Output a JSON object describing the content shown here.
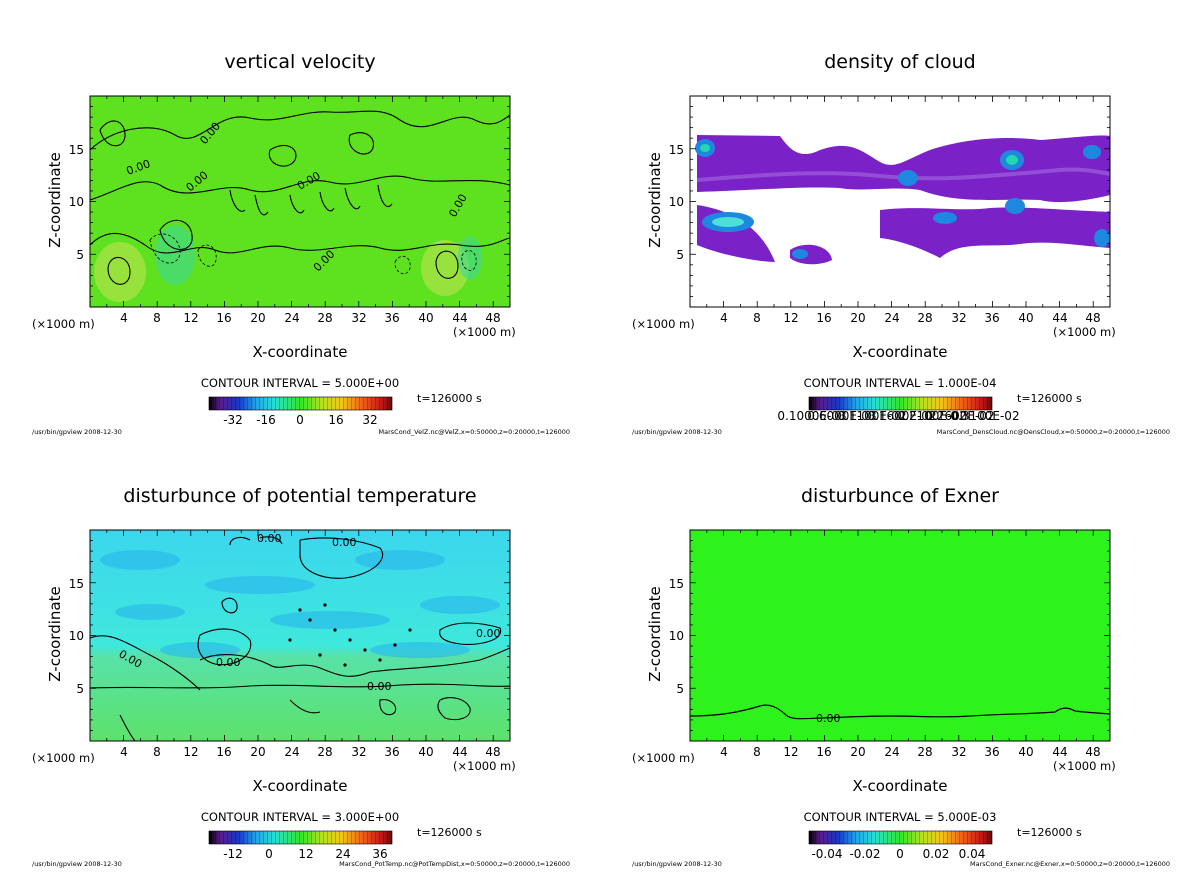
{
  "chart_data": [
    {
      "type": "contour",
      "title": "vertical velocity",
      "xlabel": "X-coordinate",
      "ylabel": "Z-coordinate",
      "x_unit": "(×1000 m)",
      "xlim": [
        0,
        50
      ],
      "ylim": [
        0,
        20
      ],
      "xticks": [
        "4",
        "8",
        "12",
        "16",
        "20",
        "24",
        "28",
        "32",
        "36",
        "40",
        "44",
        "48"
      ],
      "yticks": [
        "5",
        "10",
        "15"
      ],
      "contour_interval_text": "CONTOUR INTERVAL = 5.000E+00",
      "time_text": "t=126000 s",
      "colorbar_ticks": [
        "-32",
        "-16",
        "0",
        "16",
        "32"
      ],
      "contour_labels": [
        "0.00",
        "0.00",
        "0.00",
        "0.00",
        "0.00",
        "0.00"
      ],
      "footer_left": "/usr/bin/gpview  2008-12-30",
      "footer_right": "MarsCond_VelZ.nc@VelZ,x=0:50000,z=0:20000,t=126000",
      "field_color": "#5ee21f"
    },
    {
      "type": "contour",
      "title": "density of cloud",
      "xlabel": "X-coordinate",
      "ylabel": "Z-coordinate",
      "x_unit": "(×1000 m)",
      "xlim": [
        0,
        50
      ],
      "ylim": [
        0,
        20
      ],
      "xticks": [
        "4",
        "8",
        "12",
        "16",
        "20",
        "24",
        "28",
        "32",
        "36",
        "40",
        "44",
        "48"
      ],
      "yticks": [
        "5",
        "10",
        "15"
      ],
      "contour_interval_text": "CONTOUR INTERVAL = 1.000E-04",
      "time_text": "t=126000 s",
      "colorbar_ticks": [
        "0.1000E-03",
        "0.6000E-03",
        "0.1100E-02",
        "0.1600E-02",
        "0.2100E-02",
        "0.2600E-02",
        "0.3100E-02"
      ],
      "footer_left": "/usr/bin/gpview  2008-12-30",
      "footer_right": "MarsCond_DensCloud.nc@DensCloud,x=0:50000,z=0:20000,t=126000",
      "field_color": "#7a22c8"
    },
    {
      "type": "contour",
      "title": "disturbunce of potential temperature",
      "xlabel": "X-coordinate",
      "ylabel": "Z-coordinate",
      "x_unit": "(×1000 m)",
      "xlim": [
        0,
        50
      ],
      "ylim": [
        0,
        20
      ],
      "xticks": [
        "4",
        "8",
        "12",
        "16",
        "20",
        "24",
        "28",
        "32",
        "36",
        "40",
        "44",
        "48"
      ],
      "yticks": [
        "5",
        "10",
        "15"
      ],
      "contour_interval_text": "CONTOUR INTERVAL = 3.000E+00",
      "time_text": "t=126000 s",
      "colorbar_ticks": [
        "-12",
        "0",
        "12",
        "24",
        "36"
      ],
      "contour_labels": [
        "0.00",
        "0.00",
        "0.00",
        "0.00",
        "0.00",
        "0.00"
      ],
      "footer_left": "/usr/bin/gpview  2008-12-30",
      "footer_right": "MarsCond_PotTemp.nc@PotTempDist,x=0:50000,z=0:20000,t=126000",
      "field_color": "#33e6dc"
    },
    {
      "type": "contour",
      "title": "disturbunce of Exner",
      "xlabel": "X-coordinate",
      "ylabel": "Z-coordinate",
      "x_unit": "(×1000 m)",
      "xlim": [
        0,
        50
      ],
      "ylim": [
        0,
        20
      ],
      "xticks": [
        "4",
        "8",
        "12",
        "16",
        "20",
        "24",
        "28",
        "32",
        "36",
        "40",
        "44",
        "48"
      ],
      "yticks": [
        "5",
        "10",
        "15"
      ],
      "contour_interval_text": "CONTOUR INTERVAL = 5.000E-03",
      "time_text": "t=126000 s",
      "colorbar_ticks": [
        "-0.04",
        "-0.02",
        "0",
        "0.02",
        "0.04"
      ],
      "contour_labels": [
        "0.00"
      ],
      "footer_left": "/usr/bin/gpview  2008-12-30",
      "footer_right": "MarsCond_Exner.nc@Exner,x=0:50000,z=0:20000,t=126000",
      "field_color": "#2ef21c"
    }
  ]
}
